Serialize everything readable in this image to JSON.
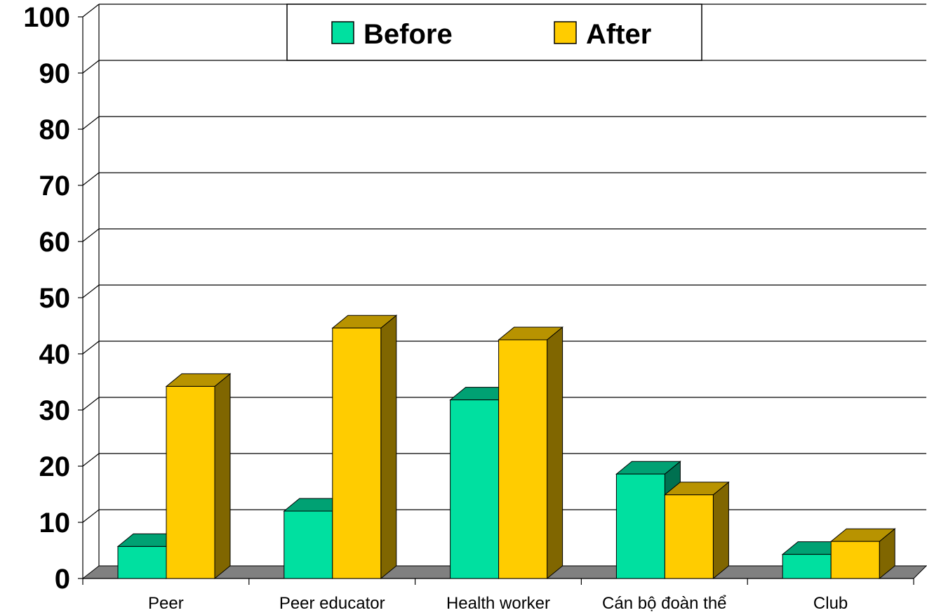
{
  "chart_data": {
    "type": "bar",
    "categories": [
      "Peer",
      "Peer educator",
      "Health worker",
      "Cán bộ đoàn thể",
      "Club"
    ],
    "series": [
      {
        "name": "Before",
        "values": [
          5.7,
          12.0,
          31.8,
          18.6,
          4.3
        ],
        "color": "#00E0A0"
      },
      {
        "name": "After",
        "values": [
          34.2,
          44.6,
          42.5,
          14.9,
          6.6
        ],
        "color": "#FFCC00"
      }
    ],
    "ylim": [
      0,
      100
    ],
    "yticks": [
      "0",
      "10",
      "20",
      "30",
      "40",
      "50",
      "60",
      "70",
      "80",
      "90",
      "100"
    ],
    "grid": true,
    "legend_position": "top-center",
    "style": "3d-clustered-column"
  }
}
